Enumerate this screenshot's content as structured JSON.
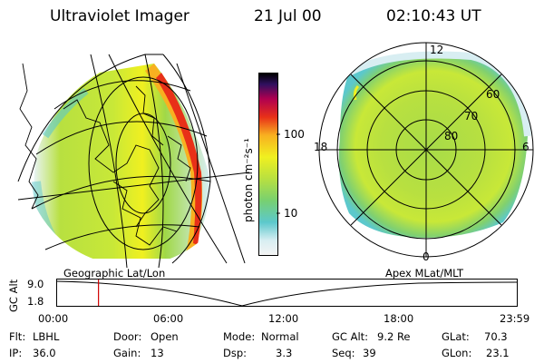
{
  "header": {
    "title": "Ultraviolet Imager",
    "date": "21 Jul 00",
    "time": "02:10:43 UT"
  },
  "colorbar": {
    "unit_label": "photon cm⁻²s⁻¹",
    "ticks": [
      "100",
      "10"
    ]
  },
  "polar": {
    "mlt_labels": {
      "top": "12",
      "left": "18",
      "right": "6",
      "bottom": "0"
    },
    "lat_labels": [
      "60",
      "70",
      "80"
    ]
  },
  "panel_titles": {
    "left": "Geographic Lat/Lon",
    "right": "Apex MLat/MLT"
  },
  "alt_plot": {
    "ylabel": "GC Alt",
    "yticks": [
      "9.0",
      "1.8"
    ],
    "xticks": [
      "00:00",
      "06:00",
      "12:00",
      "18:00",
      "23:59"
    ],
    "current_time_fraction": 0.09
  },
  "status": {
    "row1": [
      {
        "k": "Flt:",
        "v": "LBHL"
      },
      {
        "k": "Door:",
        "v": "Open"
      },
      {
        "k": "Mode:",
        "v": "Normal"
      },
      {
        "k": "GC Alt:",
        "v": "9.2 Re"
      },
      {
        "k": "GLat:",
        "v": "70.3"
      }
    ],
    "row2": [
      {
        "k": "IP:",
        "v": "36.0"
      },
      {
        "k": "Gain:",
        "v": "13"
      },
      {
        "k": "Dsp:",
        "v": "3.3"
      },
      {
        "k": "Seq:",
        "v": "39"
      },
      {
        "k": "GLon:",
        "v": "23.1"
      }
    ]
  },
  "colors": {
    "accent_line": "#d00000",
    "colorscale": [
      "#f4f4f4",
      "#d8eef2",
      "#5cc8cc",
      "#78d070",
      "#b8e040",
      "#f0f020",
      "#f8b020",
      "#e83018",
      "#b00050",
      "#301060",
      "#000000"
    ]
  }
}
